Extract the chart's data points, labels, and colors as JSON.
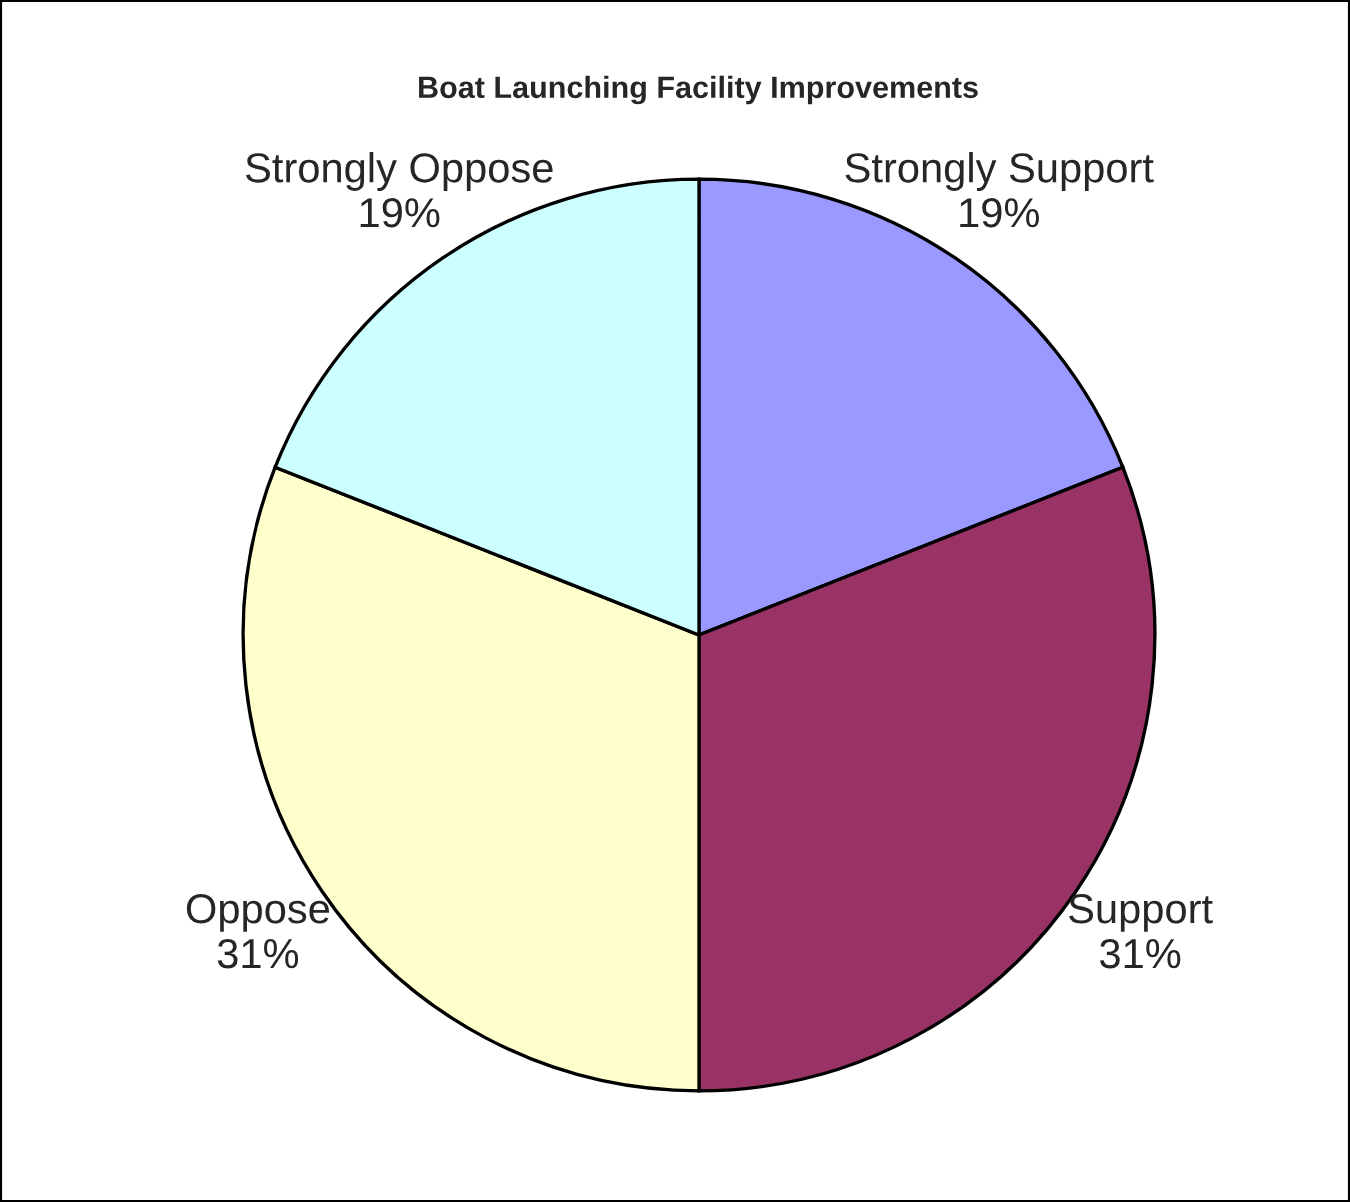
{
  "chart_data": {
    "type": "pie",
    "title": "Boat Launching Facility Improvements",
    "categories": [
      "Strongly Support",
      "Support",
      "Oppose",
      "Strongly Oppose"
    ],
    "values": [
      19,
      31,
      31,
      19
    ],
    "colors": [
      "#9999ff",
      "#993366",
      "#ffffcc",
      "#ccffff"
    ],
    "value_labels": [
      "19%",
      "31%",
      "31%",
      "19%"
    ]
  }
}
